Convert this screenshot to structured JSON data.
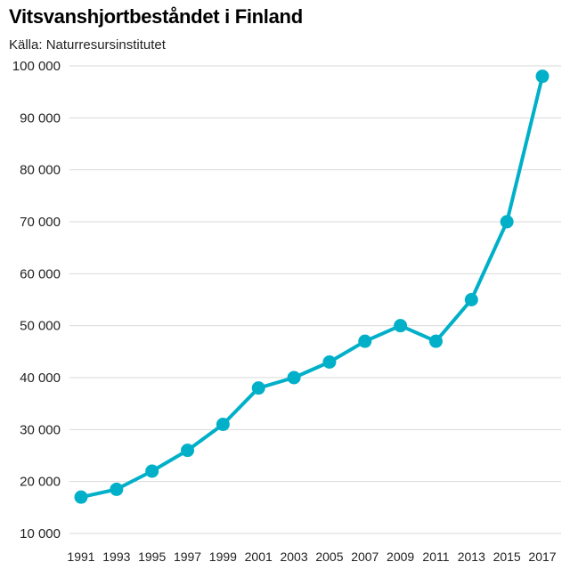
{
  "chart_data": {
    "type": "line",
    "title": "Vitsvanshjortbeståndet i Finland",
    "subtitle": "Källa: Naturresursinstitutet",
    "xlabel": "",
    "ylabel": "",
    "ylim": [
      10000,
      100000
    ],
    "y_ticks": [
      "10 000",
      "20 000",
      "30 000",
      "40 000",
      "50 000",
      "60 000",
      "70 000",
      "80 000",
      "90 000",
      "100 000"
    ],
    "y_tick_values": [
      10000,
      20000,
      30000,
      40000,
      50000,
      60000,
      70000,
      80000,
      90000,
      100000
    ],
    "grid": true,
    "legend": "none",
    "x": [
      "1991",
      "1993",
      "1995",
      "1997",
      "1999",
      "2001",
      "2003",
      "2005",
      "2007",
      "2009",
      "2011",
      "2013",
      "2015",
      "2017"
    ],
    "series": [
      {
        "values": [
          17000,
          18500,
          22000,
          26000,
          31000,
          38000,
          40000,
          43000,
          47000,
          50000,
          47000,
          55000,
          70000,
          98000
        ],
        "color": "#00b0c8"
      }
    ],
    "gridline_color": "#d9d9d9"
  }
}
